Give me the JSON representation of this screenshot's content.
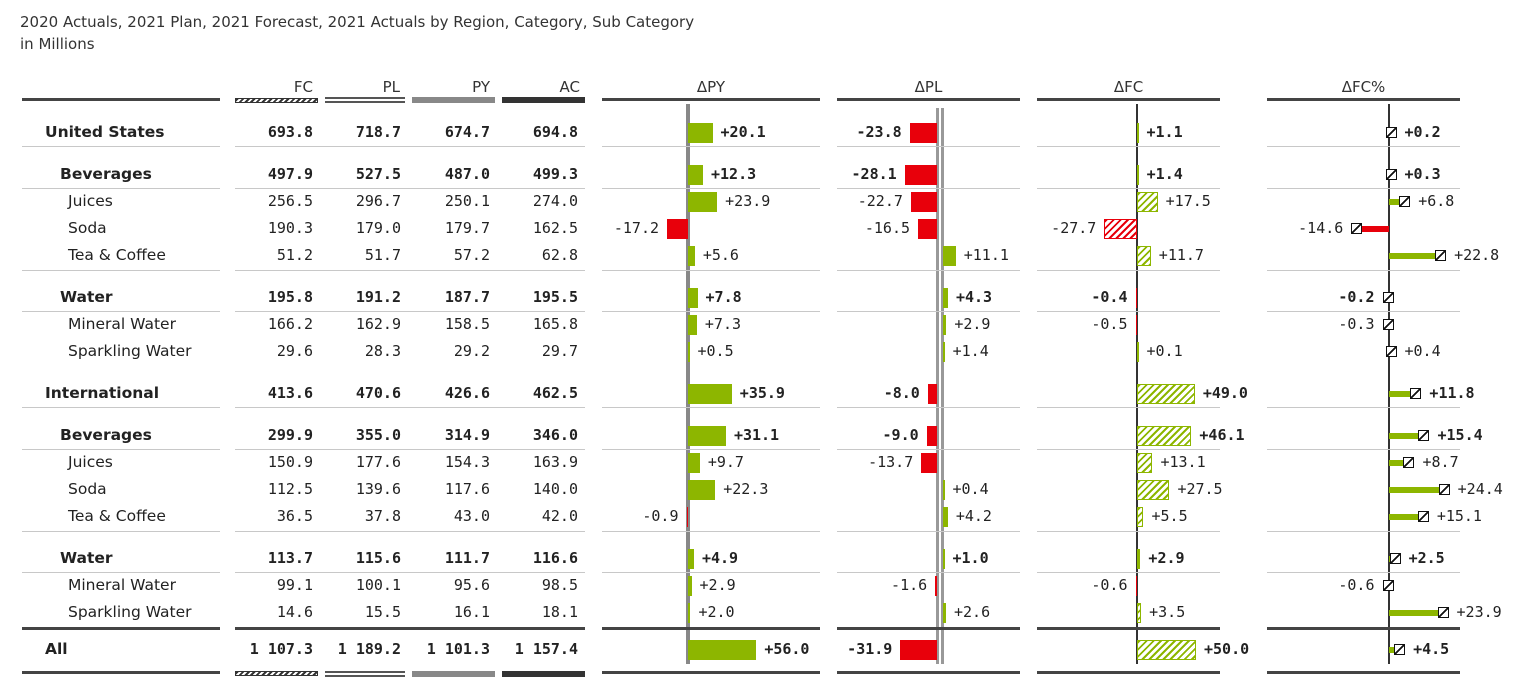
{
  "title": "2020 Actuals, 2021 Plan, 2021 Forecast, 2021 Actuals by Region, Category, Sub Category",
  "subtitle": "in Millions",
  "chart_data": {
    "type": "table",
    "columns": [
      "FC",
      "PL",
      "PY",
      "AC",
      "ΔPY",
      "ΔPL",
      "ΔFC",
      "ΔFC%"
    ],
    "colors": {
      "positive": "#8db600",
      "negative": "#e8000b",
      "axis": "#888888"
    },
    "rows": [
      {
        "label": "United States",
        "level": 0,
        "fc": "693.8",
        "pl": "718.7",
        "py": "674.7",
        "ac": "694.8",
        "dpy": 20.1,
        "dpl": -23.8,
        "dfc": 1.1,
        "dfcp": 0.2
      },
      {
        "label": "Beverages",
        "level": 1,
        "fc": "497.9",
        "pl": "527.5",
        "py": "487.0",
        "ac": "499.3",
        "dpy": 12.3,
        "dpl": -28.1,
        "dfc": 1.4,
        "dfcp": 0.3
      },
      {
        "label": "Juices",
        "level": 2,
        "fc": "256.5",
        "pl": "296.7",
        "py": "250.1",
        "ac": "274.0",
        "dpy": 23.9,
        "dpl": -22.7,
        "dfc": 17.5,
        "dfcp": 6.8
      },
      {
        "label": "Soda",
        "level": 2,
        "fc": "190.3",
        "pl": "179.0",
        "py": "179.7",
        "ac": "162.5",
        "dpy": -17.2,
        "dpl": -16.5,
        "dfc": -27.7,
        "dfcp": -14.6
      },
      {
        "label": "Tea & Coffee",
        "level": 2,
        "fc": "51.2",
        "pl": "51.7",
        "py": "57.2",
        "ac": "62.8",
        "dpy": 5.6,
        "dpl": 11.1,
        "dfc": 11.7,
        "dfcp": 22.8
      },
      {
        "label": "Water",
        "level": 1,
        "fc": "195.8",
        "pl": "191.2",
        "py": "187.7",
        "ac": "195.5",
        "dpy": 7.8,
        "dpl": 4.3,
        "dfc": -0.4,
        "dfcp": -0.2
      },
      {
        "label": "Mineral Water",
        "level": 2,
        "fc": "166.2",
        "pl": "162.9",
        "py": "158.5",
        "ac": "165.8",
        "dpy": 7.3,
        "dpl": 2.9,
        "dfc": -0.5,
        "dfcp": -0.3
      },
      {
        "label": "Sparkling Water",
        "level": 2,
        "fc": "29.6",
        "pl": "28.3",
        "py": "29.2",
        "ac": "29.7",
        "dpy": 0.5,
        "dpl": 1.4,
        "dfc": 0.1,
        "dfcp": 0.4
      },
      {
        "label": "International",
        "level": 0,
        "fc": "413.6",
        "pl": "470.6",
        "py": "426.6",
        "ac": "462.5",
        "dpy": 35.9,
        "dpl": -8.0,
        "dfc": 49.0,
        "dfcp": 11.8
      },
      {
        "label": "Beverages",
        "level": 1,
        "fc": "299.9",
        "pl": "355.0",
        "py": "314.9",
        "ac": "346.0",
        "dpy": 31.1,
        "dpl": -9.0,
        "dfc": 46.1,
        "dfcp": 15.4
      },
      {
        "label": "Juices",
        "level": 2,
        "fc": "150.9",
        "pl": "177.6",
        "py": "154.3",
        "ac": "163.9",
        "dpy": 9.7,
        "dpl": -13.7,
        "dfc": 13.1,
        "dfcp": 8.7
      },
      {
        "label": "Soda",
        "level": 2,
        "fc": "112.5",
        "pl": "139.6",
        "py": "117.6",
        "ac": "140.0",
        "dpy": 22.3,
        "dpl": 0.4,
        "dfc": 27.5,
        "dfcp": 24.4
      },
      {
        "label": "Tea & Coffee",
        "level": 2,
        "fc": "36.5",
        "pl": "37.8",
        "py": "43.0",
        "ac": "42.0",
        "dpy": -0.9,
        "dpl": 4.2,
        "dfc": 5.5,
        "dfcp": 15.1
      },
      {
        "label": "Water",
        "level": 1,
        "fc": "113.7",
        "pl": "115.6",
        "py": "111.7",
        "ac": "116.6",
        "dpy": 4.9,
        "dpl": 1.0,
        "dfc": 2.9,
        "dfcp": 2.5
      },
      {
        "label": "Mineral Water",
        "level": 2,
        "fc": "99.1",
        "pl": "100.1",
        "py": "95.6",
        "ac": "98.5",
        "dpy": 2.9,
        "dpl": -1.6,
        "dfc": -0.6,
        "dfcp": -0.6
      },
      {
        "label": "Sparkling Water",
        "level": 2,
        "fc": "14.6",
        "pl": "15.5",
        "py": "16.1",
        "ac": "18.1",
        "dpy": 2.0,
        "dpl": 2.6,
        "dfc": 3.5,
        "dfcp": 23.9
      },
      {
        "label": "All",
        "level": 3,
        "fc": "1 107.3",
        "pl": "1 189.2",
        "py": "1 101.3",
        "ac": "1 157.4",
        "dpy": 56.0,
        "dpl": -31.9,
        "dfc": 50.0,
        "dfcp": 4.5
      }
    ]
  }
}
